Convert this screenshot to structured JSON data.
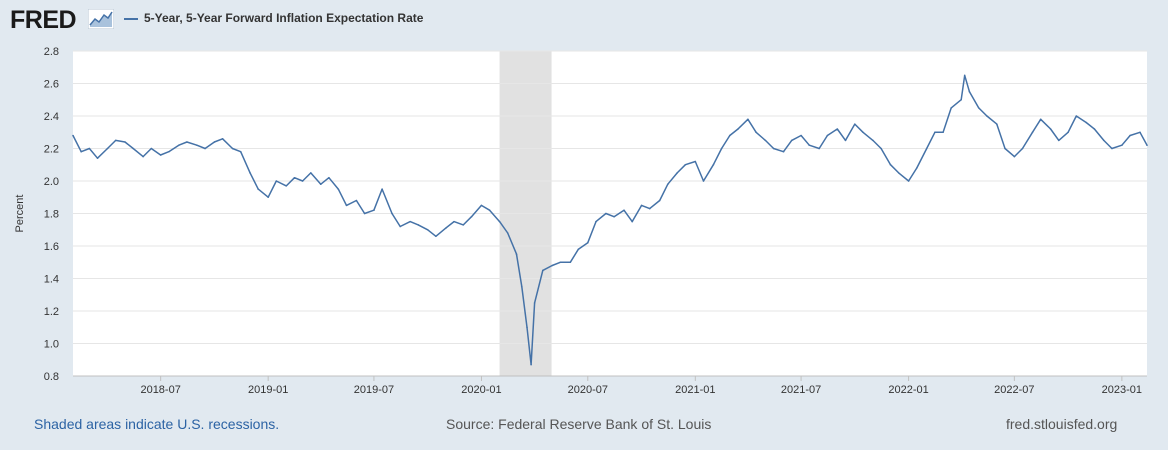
{
  "header": {
    "logo_text": "FRED",
    "logo_icon": "fred-graph-icon",
    "series_label": "5-Year, 5-Year Forward Inflation Expectation Rate"
  },
  "footer": {
    "recession_note": "Shaded areas indicate U.S. recessions.",
    "source": "Source: Federal Reserve Bank of St. Louis",
    "url": "fred.stlouisfed.org"
  },
  "colors": {
    "series": "#4572a7",
    "plot_bg": "#ffffff",
    "page_bg": "#e1e9f0",
    "grid": "#e6e6e6",
    "recession": "#e1e1e1"
  },
  "chart_data": {
    "type": "line",
    "title": "",
    "xlabel": "",
    "ylabel": "Percent",
    "ylim": [
      0.8,
      2.8
    ],
    "yticks": [
      0.8,
      1.0,
      1.2,
      1.4,
      1.6,
      1.8,
      2.0,
      2.2,
      2.4,
      2.6,
      2.8
    ],
    "xlim": [
      "2018-02-01",
      "2023-02-13"
    ],
    "xticks": [
      "2018-07",
      "2019-01",
      "2019-07",
      "2020-01",
      "2020-07",
      "2021-01",
      "2021-07",
      "2022-01",
      "2022-07",
      "2023-01"
    ],
    "grid": true,
    "legend_position": "top-left",
    "recessions": [
      {
        "start": "2020-02-01",
        "end": "2020-04-30"
      }
    ],
    "series": [
      {
        "name": "5-Year, 5-Year Forward Inflation Expectation Rate",
        "x": [
          "2018-02-01",
          "2018-02-15",
          "2018-03-01",
          "2018-03-15",
          "2018-04-01",
          "2018-04-15",
          "2018-05-01",
          "2018-05-15",
          "2018-06-01",
          "2018-06-15",
          "2018-07-01",
          "2018-07-15",
          "2018-08-01",
          "2018-08-15",
          "2018-09-01",
          "2018-09-15",
          "2018-10-01",
          "2018-10-15",
          "2018-11-01",
          "2018-11-15",
          "2018-12-01",
          "2018-12-15",
          "2019-01-01",
          "2019-01-15",
          "2019-02-01",
          "2019-02-15",
          "2019-03-01",
          "2019-03-15",
          "2019-04-01",
          "2019-04-15",
          "2019-05-01",
          "2019-05-15",
          "2019-06-01",
          "2019-06-15",
          "2019-07-01",
          "2019-07-15",
          "2019-08-01",
          "2019-08-15",
          "2019-09-01",
          "2019-09-15",
          "2019-10-01",
          "2019-10-15",
          "2019-11-01",
          "2019-11-15",
          "2019-12-01",
          "2019-12-15",
          "2020-01-01",
          "2020-01-15",
          "2020-02-01",
          "2020-02-15",
          "2020-03-01",
          "2020-03-10",
          "2020-03-19",
          "2020-03-26",
          "2020-04-01",
          "2020-04-15",
          "2020-05-01",
          "2020-05-15",
          "2020-06-01",
          "2020-06-15",
          "2020-07-01",
          "2020-07-15",
          "2020-08-01",
          "2020-08-15",
          "2020-09-01",
          "2020-09-15",
          "2020-10-01",
          "2020-10-15",
          "2020-11-01",
          "2020-11-15",
          "2020-12-01",
          "2020-12-15",
          "2021-01-01",
          "2021-01-15",
          "2021-02-01",
          "2021-02-15",
          "2021-03-01",
          "2021-03-15",
          "2021-04-01",
          "2021-04-15",
          "2021-05-01",
          "2021-05-15",
          "2021-06-01",
          "2021-06-15",
          "2021-07-01",
          "2021-07-15",
          "2021-08-01",
          "2021-08-15",
          "2021-09-01",
          "2021-09-15",
          "2021-10-01",
          "2021-10-15",
          "2021-11-01",
          "2021-11-15",
          "2021-12-01",
          "2021-12-15",
          "2022-01-01",
          "2022-01-15",
          "2022-02-01",
          "2022-02-15",
          "2022-03-01",
          "2022-03-15",
          "2022-04-01",
          "2022-04-07",
          "2022-04-15",
          "2022-05-01",
          "2022-05-15",
          "2022-06-01",
          "2022-06-15",
          "2022-07-01",
          "2022-07-15",
          "2022-08-01",
          "2022-08-15",
          "2022-09-01",
          "2022-09-15",
          "2022-10-01",
          "2022-10-15",
          "2022-11-01",
          "2022-11-15",
          "2022-12-01",
          "2022-12-15",
          "2023-01-01",
          "2023-01-15",
          "2023-02-01",
          "2023-02-13"
        ],
        "values": [
          2.28,
          2.18,
          2.2,
          2.14,
          2.2,
          2.25,
          2.24,
          2.2,
          2.15,
          2.2,
          2.16,
          2.18,
          2.22,
          2.24,
          2.22,
          2.2,
          2.24,
          2.26,
          2.2,
          2.18,
          2.05,
          1.95,
          1.9,
          2.0,
          1.97,
          2.02,
          2.0,
          2.05,
          1.98,
          2.02,
          1.95,
          1.85,
          1.88,
          1.8,
          1.82,
          1.95,
          1.8,
          1.72,
          1.75,
          1.73,
          1.7,
          1.66,
          1.71,
          1.75,
          1.73,
          1.78,
          1.85,
          1.82,
          1.75,
          1.68,
          1.55,
          1.35,
          1.1,
          0.87,
          1.25,
          1.45,
          1.48,
          1.5,
          1.5,
          1.58,
          1.62,
          1.75,
          1.8,
          1.78,
          1.82,
          1.75,
          1.85,
          1.83,
          1.88,
          1.98,
          2.05,
          2.1,
          2.12,
          2.0,
          2.1,
          2.2,
          2.28,
          2.32,
          2.38,
          2.3,
          2.25,
          2.2,
          2.18,
          2.25,
          2.28,
          2.22,
          2.2,
          2.28,
          2.32,
          2.25,
          2.35,
          2.3,
          2.25,
          2.2,
          2.1,
          2.05,
          2.0,
          2.08,
          2.2,
          2.3,
          2.3,
          2.45,
          2.5,
          2.65,
          2.55,
          2.45,
          2.4,
          2.35,
          2.2,
          2.15,
          2.2,
          2.3,
          2.38,
          2.32,
          2.25,
          2.3,
          2.4,
          2.36,
          2.32,
          2.25,
          2.2,
          2.22,
          2.28,
          2.3,
          2.22
        ]
      }
    ]
  }
}
